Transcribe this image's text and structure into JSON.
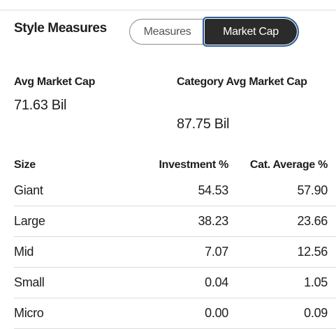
{
  "header": {
    "title": "Style Measures"
  },
  "toggle": {
    "options": [
      "Measures",
      "Market Cap"
    ],
    "active": 1
  },
  "stats": [
    {
      "label": "Avg Market Cap",
      "value": "71.63 Bil"
    },
    {
      "label": "Category Avg Market Cap",
      "value": "87.75 Bil"
    }
  ],
  "table": {
    "columns": [
      "Size",
      "Investment %",
      "Cat. Average %"
    ],
    "rows": [
      [
        "Giant",
        "54.53",
        "57.90"
      ],
      [
        "Large",
        "38.23",
        "23.66"
      ],
      [
        "Mid",
        "7.07",
        "12.56"
      ],
      [
        "Small",
        "0.04",
        "1.05"
      ],
      [
        "Micro",
        "0.00",
        "0.09"
      ]
    ]
  }
}
